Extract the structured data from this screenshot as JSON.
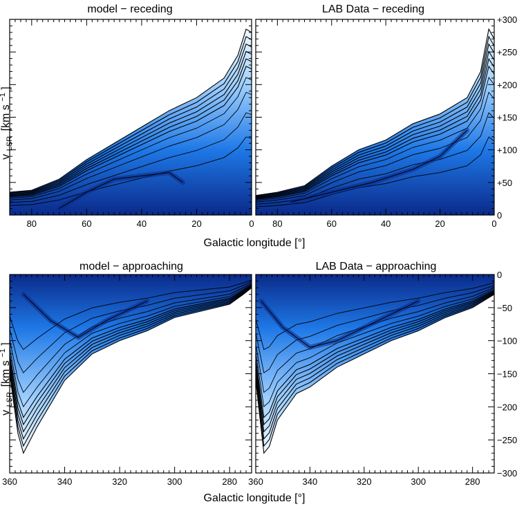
{
  "figure": {
    "colors": {
      "background": "#ffffff",
      "emission_deep": "#0a2a8a",
      "emission_mid": "#1e78e6",
      "emission_light": "#9fd0ff",
      "contour": "#000000"
    }
  },
  "chart_data": [
    {
      "type": "heatmap",
      "panel": "top-left",
      "title": "model − receding",
      "xlabel": "Galactic longitude [°]",
      "ylabel": "v LSR [km s⁻¹]",
      "ylabel_parts": {
        "main": "v",
        "sub": "LSR",
        "unit": "[km s",
        "exp": "−1",
        "close": "]"
      },
      "xlim": [
        88,
        0
      ],
      "ylim": [
        0,
        300
      ],
      "xticks": [
        80,
        60,
        40,
        20,
        0
      ],
      "xtick_labels": [
        "80",
        "60",
        "40",
        "20",
        "0"
      ],
      "yticks": [
        50,
        100,
        150,
        200,
        250
      ],
      "envelope": {
        "x": [
          88,
          80,
          70,
          60,
          50,
          40,
          30,
          20,
          10,
          5,
          2,
          0
        ],
        "v": [
          35,
          38,
          55,
          85,
          110,
          135,
          160,
          180,
          210,
          245,
          285,
          280
        ]
      },
      "ridge": {
        "x": [
          70,
          60,
          50,
          40,
          30,
          25
        ],
        "v": [
          10,
          35,
          55,
          60,
          65,
          50
        ]
      }
    },
    {
      "type": "heatmap",
      "panel": "top-right",
      "title": "LAB Data − receding",
      "xlim": [
        88,
        0
      ],
      "ylim": [
        0,
        300
      ],
      "xticks": [
        80,
        60,
        40,
        20,
        0
      ],
      "xtick_labels": [
        "80",
        "60",
        "40",
        "20",
        "0"
      ],
      "yticks": [
        0,
        50,
        100,
        150,
        200,
        250,
        300
      ],
      "ytick_labels": [
        "0",
        "+50",
        "+100",
        "+150",
        "+200",
        "+250",
        "+300"
      ],
      "envelope": {
        "x": [
          88,
          80,
          70,
          60,
          50,
          40,
          30,
          20,
          10,
          5,
          2,
          0
        ],
        "v": [
          30,
          35,
          45,
          75,
          100,
          115,
          140,
          155,
          180,
          220,
          285,
          270
        ]
      },
      "ridge": {
        "x": [
          75,
          60,
          45,
          30,
          20,
          10
        ],
        "v": [
          20,
          35,
          50,
          70,
          90,
          130
        ]
      }
    },
    {
      "type": "heatmap",
      "panel": "bottom-left",
      "title": "model − approaching",
      "xlabel": "Galactic longitude [°]",
      "ylabel": "v LSR [km s⁻¹]",
      "ylabel_parts": {
        "main": "v",
        "sub": "LSR",
        "unit": "[km s",
        "exp": "−1",
        "close": "]"
      },
      "xlim": [
        360,
        272
      ],
      "ylim": [
        -300,
        0
      ],
      "xticks": [
        360,
        340,
        320,
        300,
        280
      ],
      "xtick_labels": [
        "360",
        "340",
        "320",
        "300",
        "280"
      ],
      "yticks": [
        -250,
        -200,
        -150,
        -100,
        -50
      ],
      "envelope": {
        "x": [
          360,
          357,
          355,
          350,
          340,
          330,
          320,
          310,
          300,
          290,
          280,
          275,
          272
        ],
        "v": [
          -150,
          -240,
          -270,
          -230,
          -160,
          -120,
          -100,
          -85,
          -65,
          -55,
          -45,
          -30,
          -20
        ]
      },
      "ridge": {
        "x": [
          355,
          345,
          335,
          325,
          310
        ],
        "v": [
          -30,
          -70,
          -95,
          -70,
          -40
        ]
      }
    },
    {
      "type": "heatmap",
      "panel": "bottom-right",
      "title": "LAB Data − approaching",
      "xlim": [
        360,
        272
      ],
      "ylim": [
        -300,
        0
      ],
      "xticks": [
        360,
        340,
        320,
        300,
        280
      ],
      "xtick_labels": [
        "360",
        "340",
        "320",
        "300",
        "280"
      ],
      "yticks": [
        0,
        -50,
        -100,
        -150,
        -200,
        -250,
        -300
      ],
      "ytick_labels": [
        "0",
        "−50",
        "−100",
        "−150",
        "−200",
        "−250",
        "−300"
      ],
      "envelope": {
        "x": [
          360,
          357,
          355,
          352,
          345,
          340,
          330,
          320,
          310,
          300,
          290,
          280,
          272
        ],
        "v": [
          -160,
          -270,
          -260,
          -220,
          -180,
          -170,
          -140,
          -120,
          -100,
          -85,
          -65,
          -50,
          -30
        ]
      },
      "ridge": {
        "x": [
          358,
          350,
          340,
          330,
          320,
          300
        ],
        "v": [
          -40,
          -80,
          -110,
          -100,
          -80,
          -40
        ]
      }
    }
  ]
}
